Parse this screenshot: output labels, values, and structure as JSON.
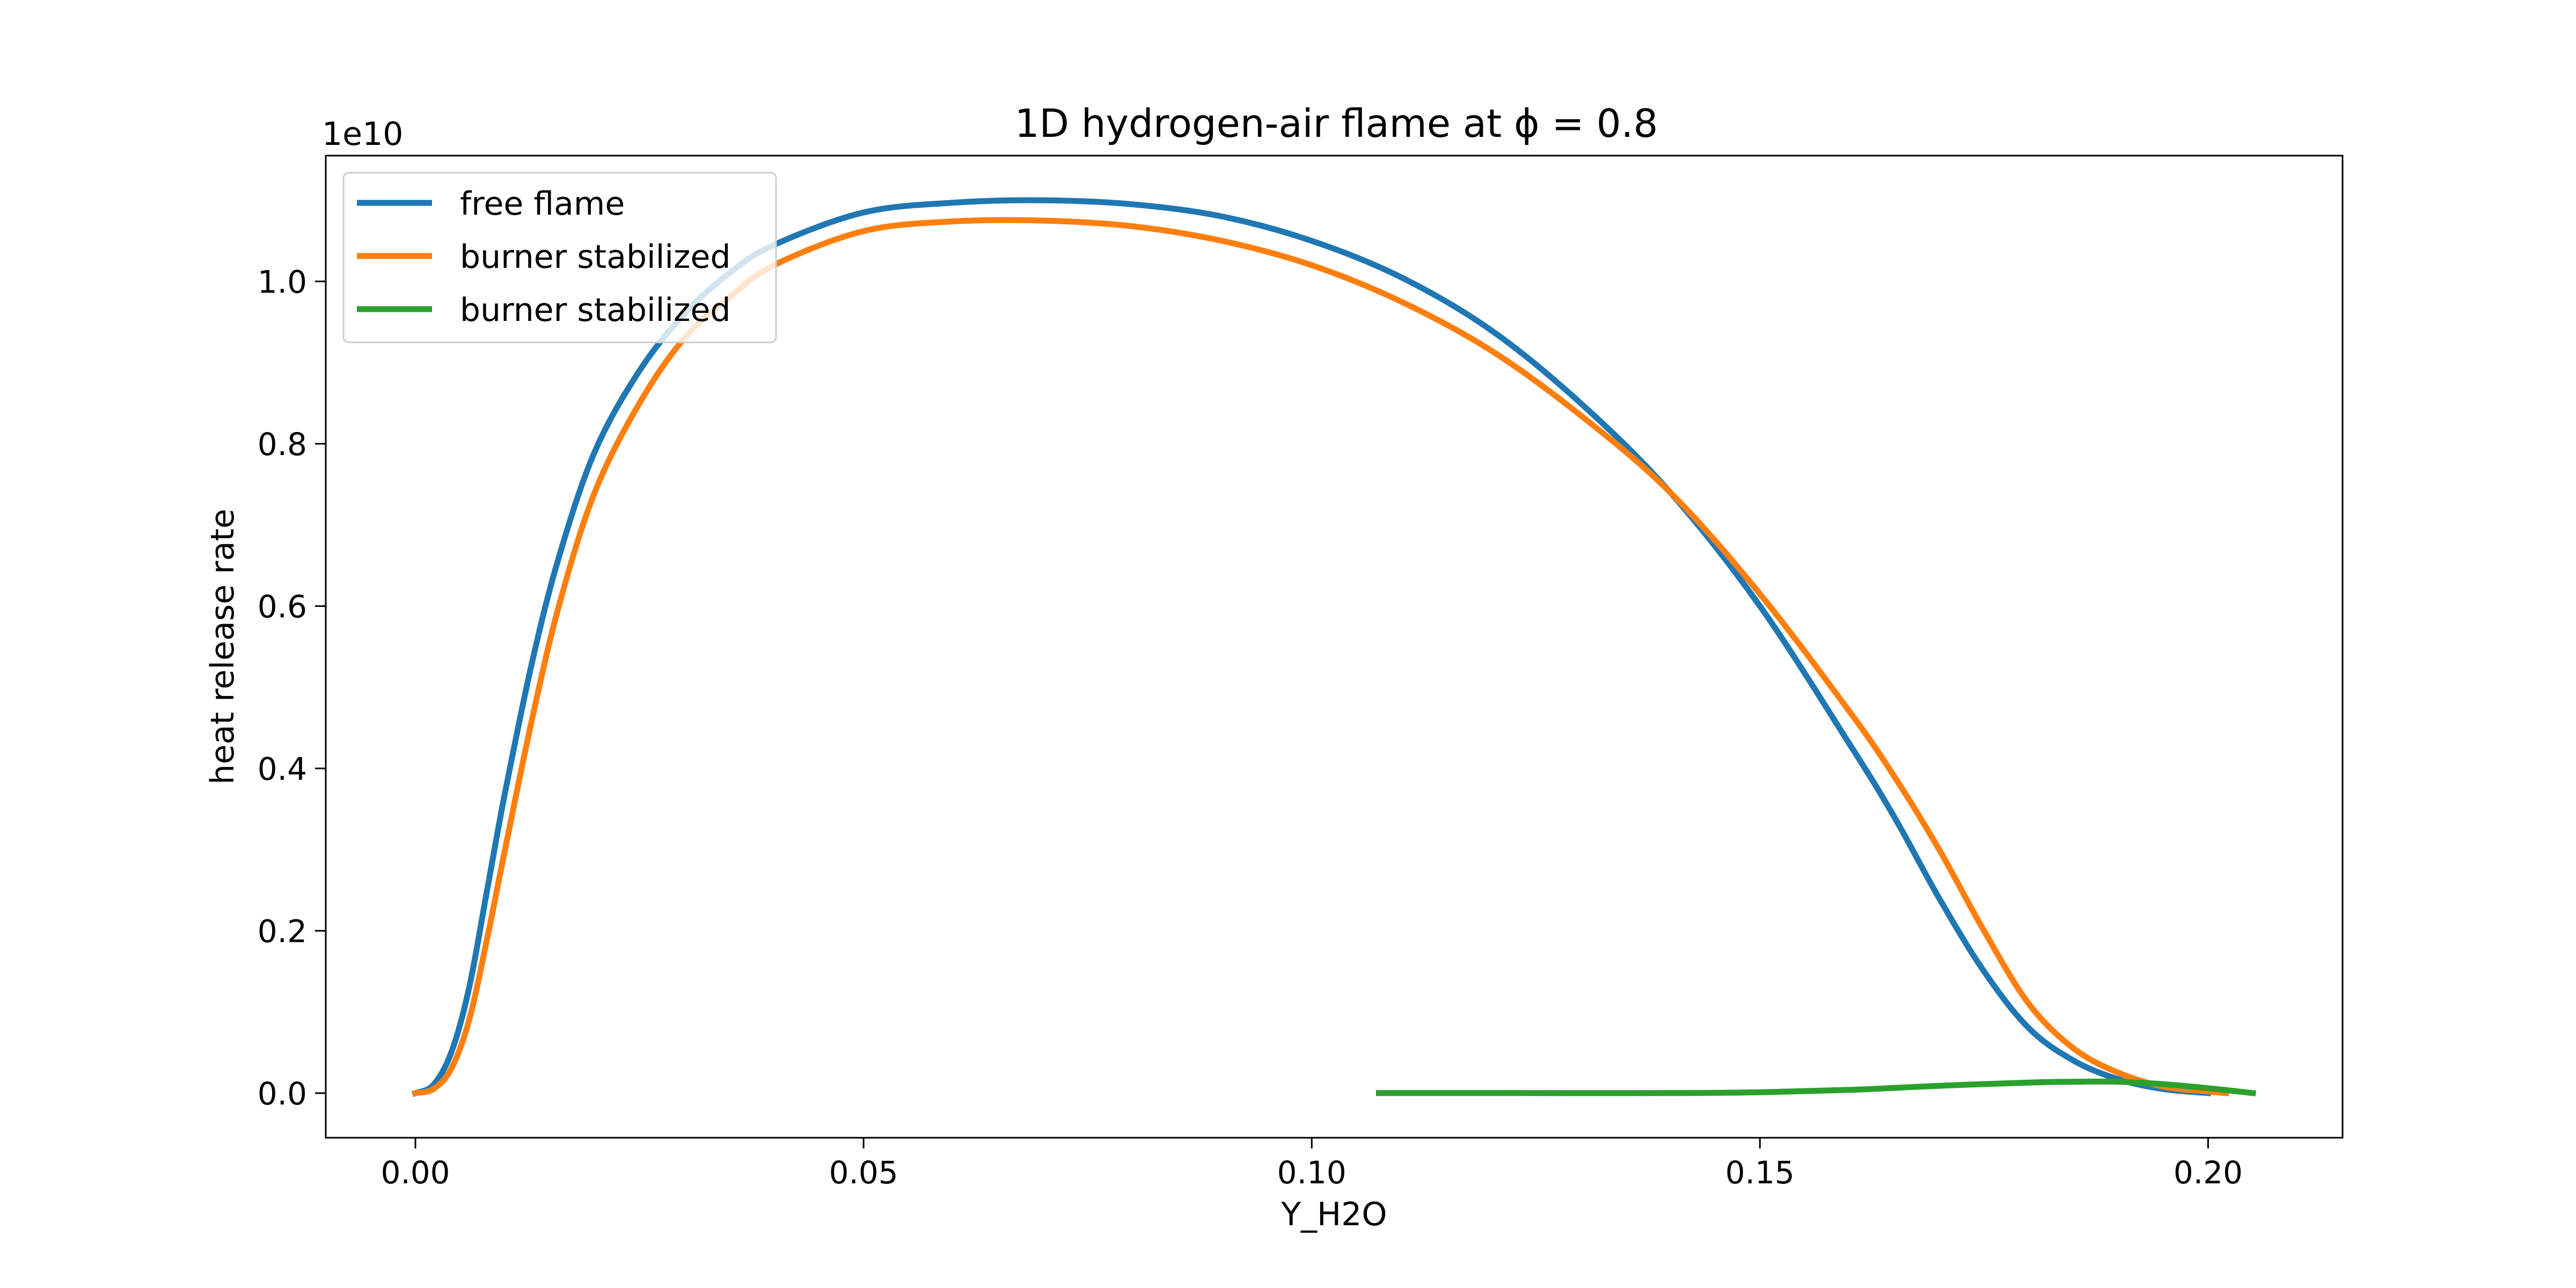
{
  "chart_data": {
    "type": "line",
    "title": "1D hydrogen-air flame at ϕ = 0.8",
    "xlabel": "Y_H2O",
    "ylabel": "heat release rate",
    "offset_label": "1e10",
    "xlim": [
      -0.01,
      0.215
    ],
    "ylim": [
      -0.055,
      1.155
    ],
    "x_ticks": [
      0.0,
      0.05,
      0.1,
      0.15,
      0.2
    ],
    "x_tick_labels": [
      "0.00",
      "0.05",
      "0.10",
      "0.15",
      "0.20"
    ],
    "y_ticks": [
      0.0,
      0.2,
      0.4,
      0.6,
      0.8,
      1.0
    ],
    "y_tick_labels": [
      "0.0",
      "0.2",
      "0.4",
      "0.6",
      "0.8",
      "1.0"
    ],
    "grid": false,
    "legend_position": "top-left",
    "series": [
      {
        "name": "free flame",
        "color": "#1f77b4",
        "x": [
          0.0,
          0.002,
          0.004,
          0.006,
          0.008,
          0.01,
          0.013,
          0.016,
          0.02,
          0.025,
          0.03,
          0.035,
          0.04,
          0.05,
          0.06,
          0.07,
          0.08,
          0.09,
          0.1,
          0.11,
          0.12,
          0.13,
          0.14,
          0.15,
          0.16,
          0.165,
          0.17,
          0.175,
          0.18,
          0.185,
          0.19,
          0.195,
          0.2
        ],
        "y": [
          0.0,
          0.01,
          0.05,
          0.13,
          0.25,
          0.37,
          0.53,
          0.66,
          0.79,
          0.89,
          0.96,
          1.01,
          1.045,
          1.085,
          1.097,
          1.1,
          1.095,
          1.08,
          1.05,
          1.005,
          0.94,
          0.85,
          0.74,
          0.6,
          0.43,
          0.34,
          0.24,
          0.15,
          0.08,
          0.04,
          0.017,
          0.005,
          0.0
        ]
      },
      {
        "name": "burner stabilized",
        "color": "#ff7f0e",
        "x": [
          0.0,
          0.002,
          0.004,
          0.006,
          0.008,
          0.01,
          0.013,
          0.016,
          0.02,
          0.025,
          0.03,
          0.035,
          0.04,
          0.05,
          0.06,
          0.07,
          0.08,
          0.09,
          0.1,
          0.11,
          0.12,
          0.13,
          0.14,
          0.15,
          0.16,
          0.165,
          0.17,
          0.175,
          0.18,
          0.185,
          0.19,
          0.195,
          0.2,
          0.202
        ],
        "y": [
          0.0,
          0.005,
          0.03,
          0.09,
          0.19,
          0.3,
          0.46,
          0.6,
          0.74,
          0.85,
          0.93,
          0.98,
          1.02,
          1.062,
          1.074,
          1.075,
          1.068,
          1.05,
          1.02,
          0.975,
          0.915,
          0.835,
          0.74,
          0.615,
          0.47,
          0.39,
          0.3,
          0.2,
          0.11,
          0.055,
          0.025,
          0.008,
          0.002,
          0.0
        ]
      },
      {
        "name": "burner stabilized",
        "color": "#2ca02c",
        "x": [
          0.1075,
          0.12,
          0.14,
          0.15,
          0.16,
          0.17,
          0.18,
          0.185,
          0.19,
          0.195,
          0.2,
          0.205
        ],
        "y": [
          0.0,
          0.0,
          0.0,
          0.001,
          0.004,
          0.009,
          0.013,
          0.014,
          0.014,
          0.011,
          0.006,
          0.0
        ]
      }
    ]
  }
}
